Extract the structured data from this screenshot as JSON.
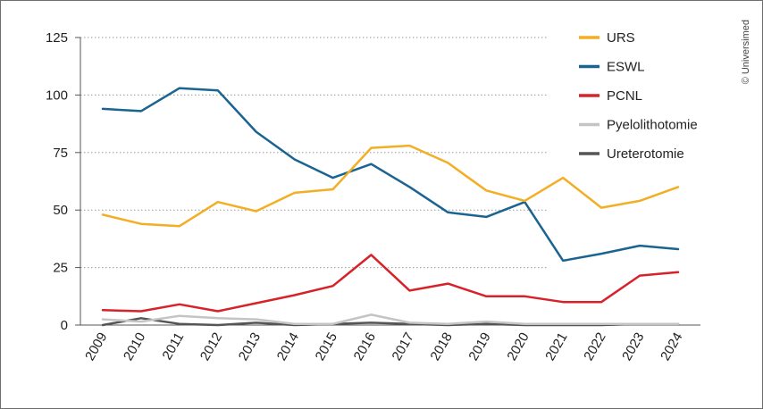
{
  "chart_data": {
    "type": "line",
    "x": [
      "2009",
      "2010",
      "2011",
      "2012",
      "2013",
      "2014",
      "2015",
      "2016",
      "2017",
      "2018",
      "2019",
      "2020",
      "2021",
      "2022",
      "2023",
      "2024"
    ],
    "ylim": [
      0,
      125
    ],
    "yticks": [
      0,
      25,
      50,
      75,
      100,
      125
    ],
    "grid": "horizontal-dotted",
    "legend_position": "top-right",
    "series": [
      {
        "name": "URS",
        "color": "#f2ae24",
        "values": [
          48,
          44,
          43,
          53.5,
          49.5,
          57.5,
          59,
          77,
          78,
          70.5,
          58.5,
          54,
          64,
          51,
          54,
          60
        ]
      },
      {
        "name": "ESWL",
        "color": "#1a6491",
        "values": [
          94,
          93,
          103,
          102,
          84,
          72,
          64,
          70,
          60,
          49,
          47,
          53.5,
          28,
          31,
          34.5,
          33
        ]
      },
      {
        "name": "PCNL",
        "color": "#d8222a",
        "values": [
          6.5,
          6,
          9,
          6,
          9.5,
          13,
          17,
          30.5,
          15,
          18,
          12.5,
          12.5,
          10,
          10,
          21.5,
          23
        ]
      },
      {
        "name": "Pyelolithotomie",
        "color": "#c4c4c4",
        "values": [
          2.5,
          1.5,
          4,
          3,
          2.5,
          0.5,
          0.5,
          4.5,
          1,
          0.5,
          1.5,
          0.5,
          0.5,
          0.5,
          0.5,
          0.5
        ]
      },
      {
        "name": "Ureterotomie",
        "color": "#555555",
        "values": [
          0,
          3,
          0.5,
          0,
          1,
          0,
          0.5,
          1,
          0.5,
          0,
          0.5,
          0,
          0,
          0,
          0.5,
          0.5
        ]
      }
    ]
  },
  "copyright": "© Universimed"
}
